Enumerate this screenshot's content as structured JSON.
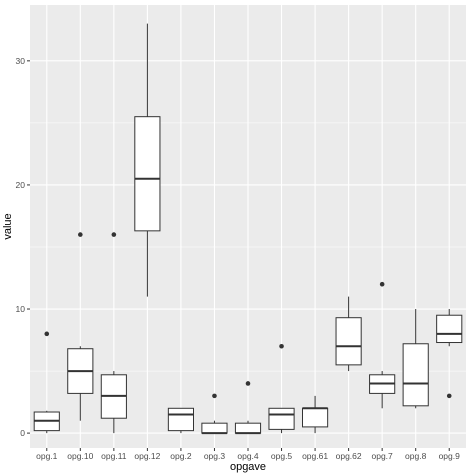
{
  "chart_data": {
    "type": "boxplot",
    "title": "",
    "xlabel": "opgave",
    "ylabel": "value",
    "ylim": [
      -1.2,
      34.5
    ],
    "yticks": [
      0,
      10,
      20,
      30
    ],
    "grid": true,
    "legend": "none",
    "colors": {
      "panel": "#EBEBEB",
      "grid_major": "#FFFFFF",
      "box_fill": "#FFFFFF",
      "box_stroke": "#333333",
      "outlier": "#333333"
    },
    "categories": [
      "opg.1",
      "opg.10",
      "opg.11",
      "opg.12",
      "opg.2",
      "opg.3",
      "opg.4",
      "opg.5",
      "opg.61",
      "opg.62",
      "opg.7",
      "opg.8",
      "opg.9"
    ],
    "boxes": [
      {
        "category": "opg.1",
        "lower_whisker": 0,
        "q1": 0.2,
        "median": 1,
        "q3": 1.7,
        "upper_whisker": 1.8,
        "outliers": [
          8
        ]
      },
      {
        "category": "opg.10",
        "lower_whisker": 1,
        "q1": 3.2,
        "median": 5,
        "q3": 6.8,
        "upper_whisker": 7,
        "outliers": [
          16
        ]
      },
      {
        "category": "opg.11",
        "lower_whisker": 0,
        "q1": 1.2,
        "median": 3,
        "q3": 4.7,
        "upper_whisker": 5,
        "outliers": [
          16
        ]
      },
      {
        "category": "opg.12",
        "lower_whisker": 11,
        "q1": 16.3,
        "median": 20.5,
        "q3": 25.5,
        "upper_whisker": 33,
        "outliers": []
      },
      {
        "category": "opg.2",
        "lower_whisker": 0,
        "q1": 0.2,
        "median": 1.5,
        "q3": 2,
        "upper_whisker": 2,
        "outliers": []
      },
      {
        "category": "opg.3",
        "lower_whisker": 0,
        "q1": 0,
        "median": 0,
        "q3": 0.8,
        "upper_whisker": 1,
        "outliers": [
          3
        ]
      },
      {
        "category": "opg.4",
        "lower_whisker": 0,
        "q1": 0,
        "median": 0,
        "q3": 0.8,
        "upper_whisker": 1,
        "outliers": [
          4
        ]
      },
      {
        "category": "opg.5",
        "lower_whisker": 0,
        "q1": 0.3,
        "median": 1.5,
        "q3": 2,
        "upper_whisker": 2,
        "outliers": [
          7
        ]
      },
      {
        "category": "opg.61",
        "lower_whisker": 0,
        "q1": 0.5,
        "median": 2,
        "q3": 2,
        "upper_whisker": 3,
        "outliers": []
      },
      {
        "category": "opg.62",
        "lower_whisker": 5,
        "q1": 5.5,
        "median": 7,
        "q3": 9.3,
        "upper_whisker": 11,
        "outliers": []
      },
      {
        "category": "opg.7",
        "lower_whisker": 2,
        "q1": 3.2,
        "median": 4,
        "q3": 4.7,
        "upper_whisker": 5,
        "outliers": [
          12
        ]
      },
      {
        "category": "opg.8",
        "lower_whisker": 2,
        "q1": 2.2,
        "median": 4,
        "q3": 7.2,
        "upper_whisker": 10,
        "outliers": []
      },
      {
        "category": "opg.9",
        "lower_whisker": 7,
        "q1": 7.3,
        "median": 8,
        "q3": 9.5,
        "upper_whisker": 10,
        "outliers": [
          3
        ]
      }
    ]
  }
}
